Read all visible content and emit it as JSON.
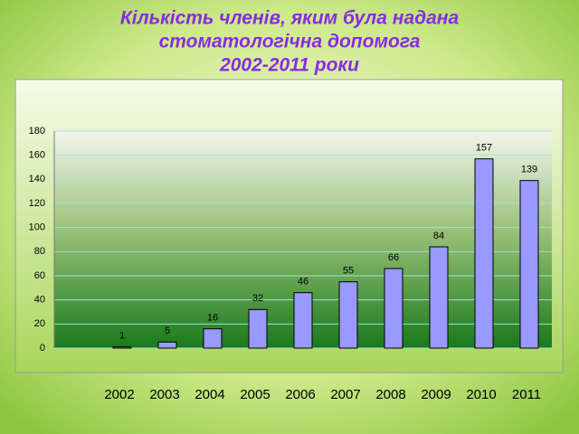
{
  "chart_data": {
    "type": "bar",
    "title": [
      "Кількість членів, яким була надана",
      "стоматологічна допомога",
      "2002-2011 роки"
    ],
    "categories": [
      "2002",
      "2003",
      "2004",
      "2005",
      "2006",
      "2007",
      "2008",
      "2009",
      "2010",
      "2011"
    ],
    "values": [
      1,
      5,
      16,
      32,
      46,
      55,
      66,
      84,
      157,
      139
    ],
    "color": "#9999ff",
    "ylim": [
      0,
      180
    ],
    "yticks": [
      0,
      20,
      40,
      60,
      80,
      100,
      120,
      140,
      160,
      180
    ],
    "grid": true
  }
}
